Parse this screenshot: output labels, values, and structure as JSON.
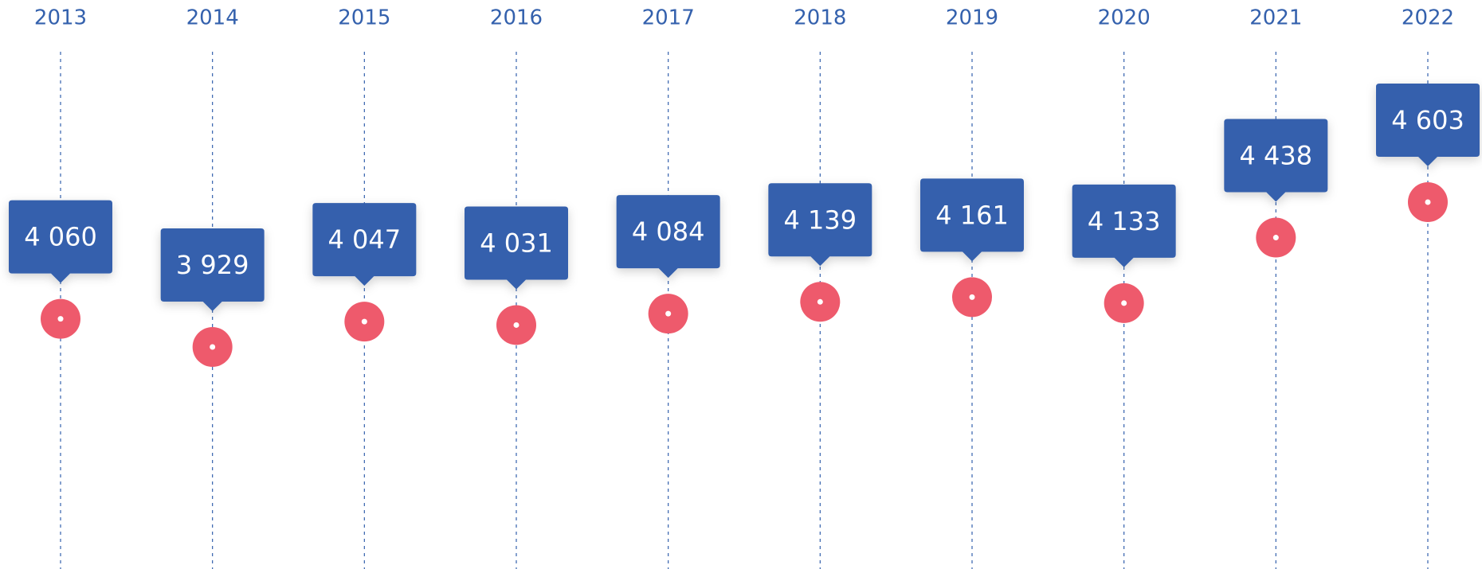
{
  "chart_data": {
    "type": "dot",
    "categories": [
      "2013",
      "2014",
      "2015",
      "2016",
      "2017",
      "2018",
      "2019",
      "2020",
      "2021",
      "2022"
    ],
    "values": [
      4060,
      3929,
      4047,
      4031,
      4084,
      4139,
      4161,
      4133,
      4438,
      4603
    ],
    "value_labels": [
      "4 060",
      "3 929",
      "4 047",
      "4 031",
      "4 084",
      "4 139",
      "4 161",
      "4 133",
      "4 438",
      "4 603"
    ],
    "color": "#ee5a6c",
    "label_color": "#3461ad"
  }
}
